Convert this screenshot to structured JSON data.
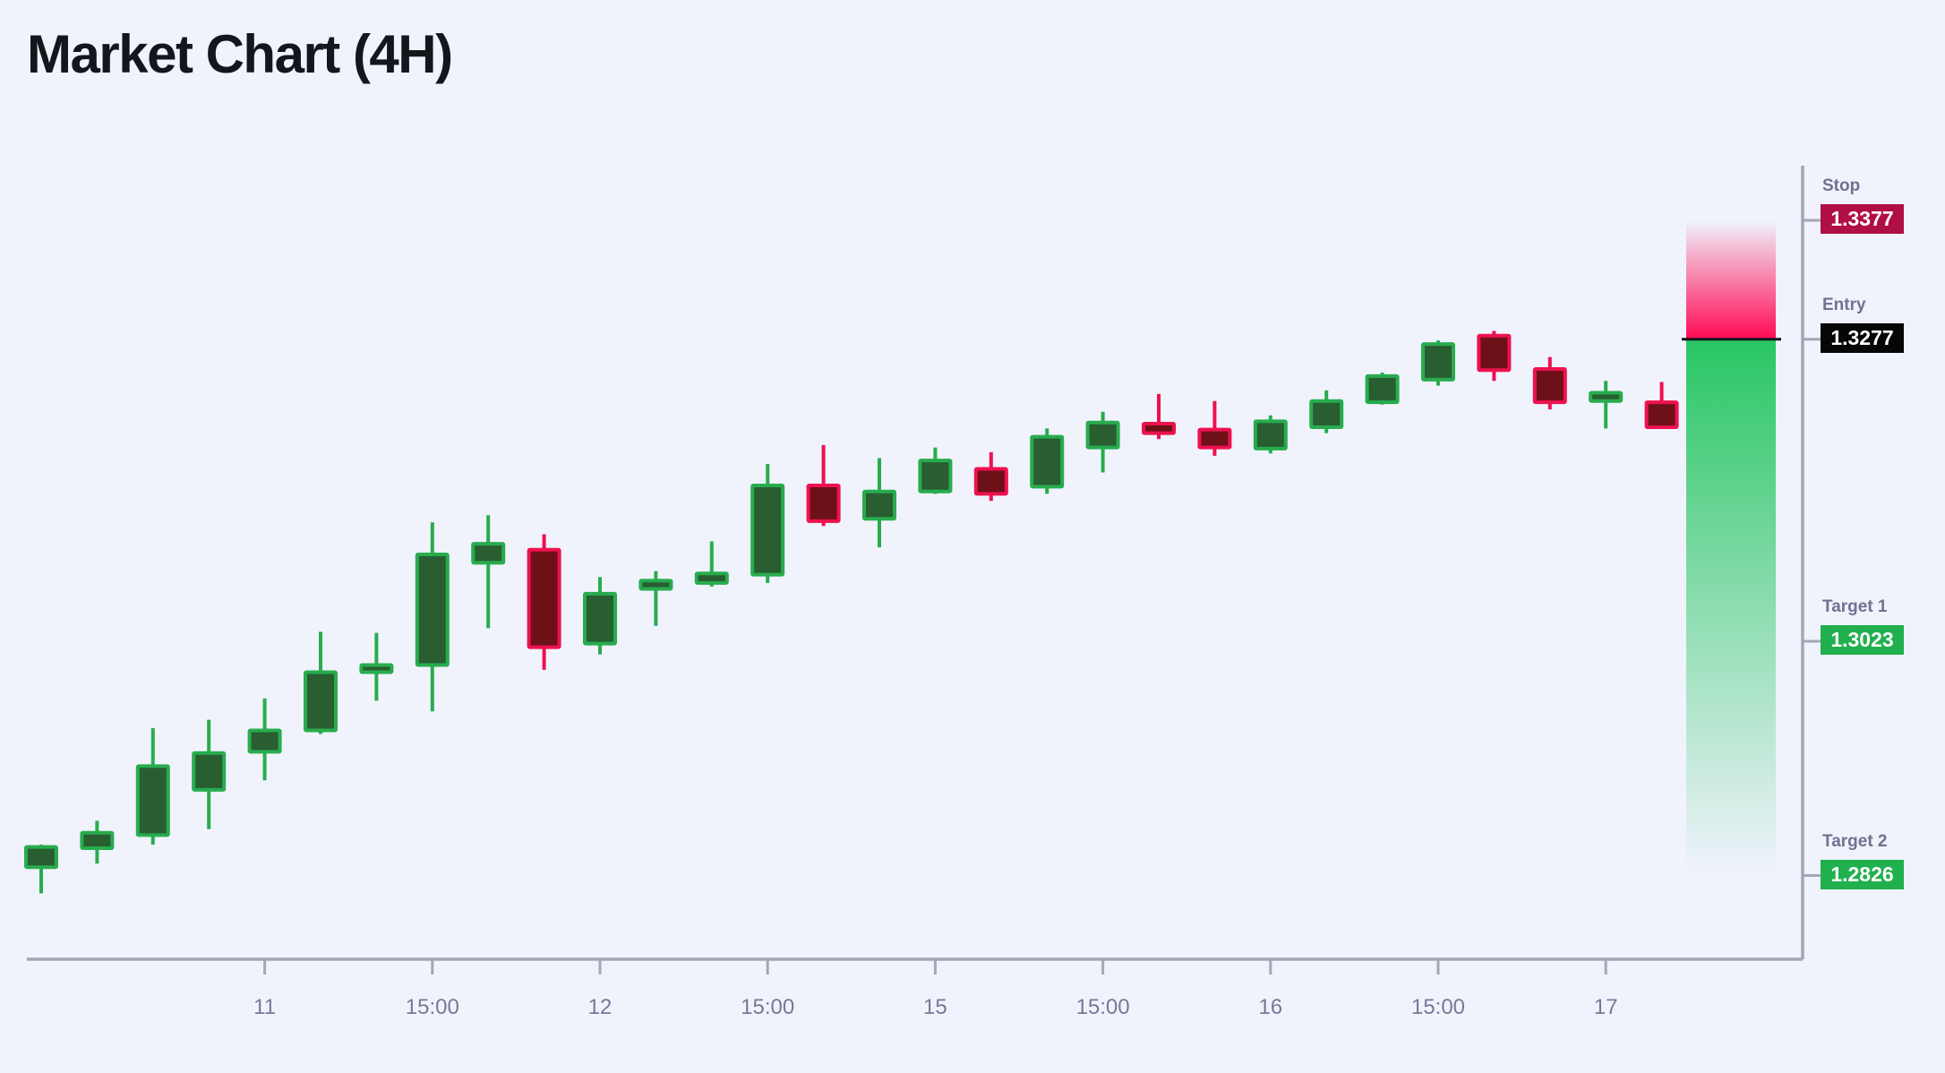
{
  "header": {
    "title": "Market Chart (4H)"
  },
  "chart_data": {
    "type": "candlestick",
    "title": "Market Chart (4H)",
    "timeframe": "4H",
    "grid": false,
    "legend_position": "right",
    "price_range_visible": [
      1.279,
      1.34
    ],
    "x_axis": {
      "tick_candle_indices": [
        4,
        7,
        10,
        13,
        16,
        19,
        22,
        25,
        28
      ],
      "tick_labels": [
        "11",
        "15:00",
        "12",
        "15:00",
        "15",
        "15:00",
        "16",
        "15:00",
        "17"
      ]
    },
    "candles": [
      {
        "o": 1.2833,
        "h": 1.2852,
        "l": 1.2811,
        "c": 1.285
      },
      {
        "o": 1.2849,
        "h": 1.2872,
        "l": 1.2836,
        "c": 1.2862
      },
      {
        "o": 1.286,
        "h": 1.295,
        "l": 1.2852,
        "c": 1.2918
      },
      {
        "o": 1.2898,
        "h": 1.2957,
        "l": 1.2865,
        "c": 1.2929
      },
      {
        "o": 1.293,
        "h": 1.2975,
        "l": 1.2906,
        "c": 1.2948
      },
      {
        "o": 1.2948,
        "h": 1.3031,
        "l": 1.2945,
        "c": 1.2997
      },
      {
        "o": 1.2997,
        "h": 1.303,
        "l": 1.2973,
        "c": 1.3003
      },
      {
        "o": 1.3003,
        "h": 1.3123,
        "l": 1.2964,
        "c": 1.3096
      },
      {
        "o": 1.3089,
        "h": 1.3129,
        "l": 1.3034,
        "c": 1.3105
      },
      {
        "o": 1.31,
        "h": 1.3113,
        "l": 1.2999,
        "c": 1.3018
      },
      {
        "o": 1.3021,
        "h": 1.3077,
        "l": 1.3012,
        "c": 1.3063
      },
      {
        "o": 1.3067,
        "h": 1.3082,
        "l": 1.3036,
        "c": 1.3074
      },
      {
        "o": 1.3072,
        "h": 1.3107,
        "l": 1.3069,
        "c": 1.308
      },
      {
        "o": 1.3079,
        "h": 1.3172,
        "l": 1.3072,
        "c": 1.3154
      },
      {
        "o": 1.3154,
        "h": 1.3188,
        "l": 1.312,
        "c": 1.3124
      },
      {
        "o": 1.3126,
        "h": 1.3177,
        "l": 1.3102,
        "c": 1.3149
      },
      {
        "o": 1.3149,
        "h": 1.3186,
        "l": 1.3147,
        "c": 1.3175
      },
      {
        "o": 1.3168,
        "h": 1.3182,
        "l": 1.3141,
        "c": 1.3147
      },
      {
        "o": 1.3153,
        "h": 1.3202,
        "l": 1.3147,
        "c": 1.3195
      },
      {
        "o": 1.3186,
        "h": 1.3216,
        "l": 1.3165,
        "c": 1.3207
      },
      {
        "o": 1.3206,
        "h": 1.3231,
        "l": 1.3193,
        "c": 1.3198
      },
      {
        "o": 1.3201,
        "h": 1.3225,
        "l": 1.3179,
        "c": 1.3186
      },
      {
        "o": 1.3185,
        "h": 1.3213,
        "l": 1.3181,
        "c": 1.3208
      },
      {
        "o": 1.3203,
        "h": 1.3234,
        "l": 1.3198,
        "c": 1.3225
      },
      {
        "o": 1.3224,
        "h": 1.3249,
        "l": 1.3222,
        "c": 1.3246
      },
      {
        "o": 1.3243,
        "h": 1.3276,
        "l": 1.3238,
        "c": 1.3273
      },
      {
        "o": 1.328,
        "h": 1.3284,
        "l": 1.3242,
        "c": 1.3251
      },
      {
        "o": 1.3252,
        "h": 1.3262,
        "l": 1.3218,
        "c": 1.3224
      },
      {
        "o": 1.3225,
        "h": 1.3242,
        "l": 1.3202,
        "c": 1.3232
      },
      {
        "o": 1.3224,
        "h": 1.3241,
        "l": 1.3203,
        "c": 1.3203
      }
    ],
    "levels": {
      "stop": {
        "label": "Stop",
        "value": "1.3377",
        "price": 1.3377
      },
      "entry": {
        "label": "Entry",
        "value": "1.3277",
        "price": 1.3277
      },
      "target1": {
        "label": "Target 1",
        "value": "1.3023",
        "price": 1.3023
      },
      "target2": {
        "label": "Target 2",
        "value": "1.2826",
        "price": 1.2826
      }
    },
    "colors": {
      "background": "#f0f3fc",
      "bull_body": "#295e31",
      "bull_border": "#28ac4e",
      "bear_body": "#6e1018",
      "bear_border": "#ee1150",
      "risk_zone": "#ff0a54",
      "reward_zone": "#22c55e",
      "entry_line": "#14161a",
      "stop_badge": "#b00f43",
      "entry_badge": "#060606",
      "target_badge": "#21b04e",
      "axis": "#a3a7b5",
      "tick_label": "#757a97",
      "level_label": "#6f7290"
    }
  }
}
